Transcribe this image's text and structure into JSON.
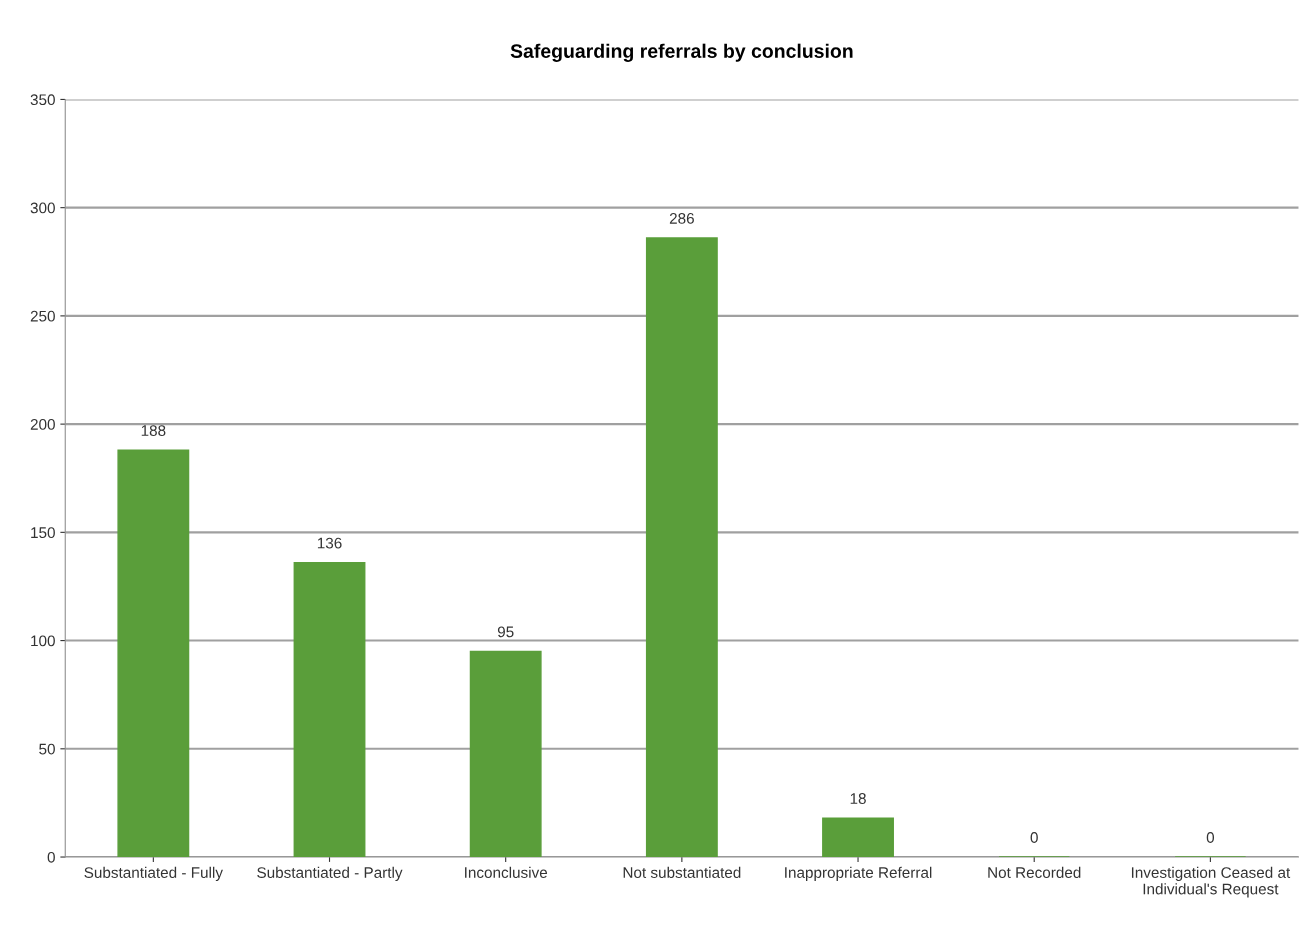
{
  "chart_data": {
    "type": "bar",
    "title": "Safeguarding referrals by conclusion",
    "categories": [
      "Substantiated - Fully",
      "Substantiated - Partly",
      "Inconclusive",
      "Not substantiated",
      "Inappropriate Referral",
      "Not Recorded",
      "Investigation Ceased at Individual's Request"
    ],
    "values": [
      188,
      136,
      95,
      286,
      18,
      0,
      0
    ],
    "color": "#5a9e3a",
    "ylim": [
      0,
      350
    ],
    "yticks": [
      0,
      50,
      100,
      150,
      200,
      250,
      300,
      350
    ],
    "grid": "y",
    "data_labels": true
  }
}
